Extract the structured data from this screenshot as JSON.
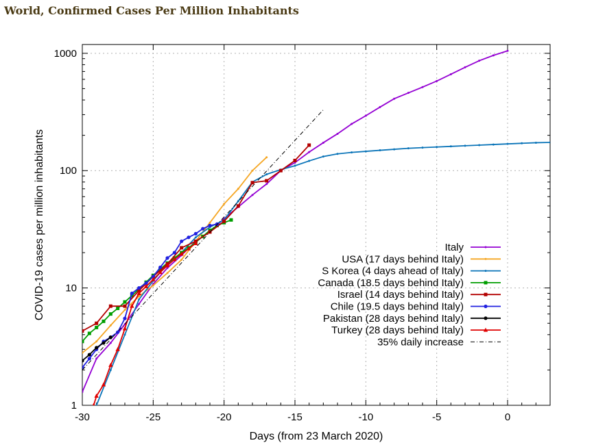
{
  "page": {
    "title": "World, Confirmed Cases Per Million Inhabitants"
  },
  "chart_data": {
    "type": "line",
    "title": "World, Confirmed Cases Per Million Inhabitants",
    "xlabel": "Days (from 23 March 2020)",
    "ylabel": "COVID-19 cases per million inhabitants",
    "xlim": [
      -30,
      3
    ],
    "ylim": [
      1,
      1000
    ],
    "yscale": "log",
    "grid": true,
    "legend_position": "lower-right",
    "x_ticks": [
      -30,
      -25,
      -20,
      -15,
      -10,
      -5,
      0
    ],
    "y_ticks": [
      1,
      10,
      100,
      1000
    ],
    "series": [
      {
        "name": "Italy",
        "color": "#9400d3",
        "marker": "tick",
        "x": [
          -30,
          -29,
          -28,
          -27,
          -26,
          -25,
          -24,
          -23,
          -22,
          -21,
          -20,
          -19,
          -18,
          -17,
          -16,
          -15,
          -14,
          -13,
          -12,
          -11,
          -10,
          -9,
          -8,
          -7,
          -6,
          -5,
          -4,
          -3,
          -2,
          -1,
          0
        ],
        "y": [
          1.3,
          2.5,
          3.4,
          4.9,
          7.3,
          10.8,
          14.8,
          19,
          25,
          30,
          39,
          49,
          62,
          77,
          100,
          117,
          144,
          173,
          206,
          250,
          294,
          348,
          410,
          460,
          515,
          580,
          663,
          760,
          865,
          960,
          1050
        ]
      },
      {
        "name": "USA (17 days behind Italy)",
        "color": "#f5a623",
        "marker": "tick",
        "x": [
          -30,
          -29,
          -28,
          -27,
          -26,
          -25,
          -24,
          -23,
          -22,
          -21,
          -20,
          -19,
          -18,
          -17
        ],
        "y": [
          2.8,
          3.5,
          4.8,
          6.5,
          8.5,
          10.5,
          13.4,
          17.4,
          25,
          36,
          52,
          70,
          100,
          130
        ]
      },
      {
        "name": "S Korea (4 days ahead of Italy)",
        "color": "#0a74b8",
        "marker": "tick",
        "x": [
          -29,
          -28,
          -27,
          -26,
          -25,
          -24,
          -23,
          -22,
          -21,
          -20,
          -19,
          -18,
          -17,
          -16,
          -15,
          -14,
          -13,
          -12,
          -11,
          -10,
          -9,
          -8,
          -7,
          -6,
          -5,
          -4,
          -3,
          -2,
          -1,
          0,
          1,
          2,
          3
        ],
        "y": [
          1,
          2,
          4,
          8,
          11.5,
          16,
          20,
          27,
          33,
          38,
          55,
          80,
          93,
          102,
          110,
          121,
          132,
          139,
          143,
          146,
          149,
          152,
          155,
          157,
          159,
          161,
          163,
          165,
          167,
          169,
          171,
          173,
          174
        ]
      },
      {
        "name": "Canada (18.5 days behind Italy)",
        "color": "#009e00",
        "marker": "square",
        "x": [
          -30,
          -29.5,
          -29,
          -28.5,
          -28,
          -27.5,
          -27,
          -26.5,
          -26,
          -25.5,
          -25,
          -24.5,
          -24,
          -23.5,
          -23,
          -22.5,
          -22,
          -21.5,
          -21,
          -20.5,
          -20,
          -19.5
        ],
        "y": [
          3.5,
          4.1,
          4.6,
          5.2,
          6,
          6.7,
          7.6,
          8.6,
          9.8,
          11.2,
          12.8,
          14.5,
          16.3,
          18,
          20,
          22,
          24.5,
          27.5,
          31,
          34,
          36,
          38
        ]
      },
      {
        "name": "Israel (14 days behind Italy)",
        "color": "#b30000",
        "marker": "square",
        "x": [
          -30,
          -29,
          -28,
          -27,
          -26,
          -25,
          -24,
          -23,
          -22,
          -21,
          -20,
          -19,
          -18,
          -17,
          -16,
          -15,
          -14
        ],
        "y": [
          4.3,
          5,
          7,
          7,
          9.5,
          12.5,
          16,
          22,
          25,
          30,
          37,
          50,
          79,
          82,
          100,
          122,
          165
        ]
      },
      {
        "name": "Chile (19.5 days behind Italy)",
        "color": "#2020e0",
        "marker": "circle",
        "x": [
          -30,
          -29.5,
          -29,
          -28.5,
          -28,
          -27.5,
          -27,
          -26.5,
          -26,
          -25.5,
          -25,
          -24.5,
          -24,
          -23.5,
          -23,
          -22.5,
          -22,
          -21.5,
          -21,
          -20.5
        ],
        "y": [
          2.1,
          2.5,
          3,
          3.5,
          3.8,
          4.2,
          5.5,
          9,
          10,
          11,
          12.5,
          15,
          18,
          20,
          25,
          27,
          29,
          32,
          34,
          35
        ]
      },
      {
        "name": "Pakistan (28 days behind Italy)",
        "color": "#000000",
        "marker": "circle",
        "x": [
          -30,
          -29.5,
          -29,
          -28.5,
          -28
        ],
        "y": [
          2.4,
          2.7,
          3.1,
          3.4,
          3.8
        ]
      },
      {
        "name": "Turkey (28 days behind Italy)",
        "color": "#e00000",
        "marker": "triangle",
        "x": [
          -29.2,
          -29,
          -28.5,
          -28,
          -27.5,
          -27,
          -26.5,
          -26,
          -25.5,
          -25,
          -24.5,
          -24,
          -23.5,
          -23,
          -22.5,
          -22
        ],
        "y": [
          1,
          1.2,
          1.5,
          2.2,
          3,
          4.5,
          7,
          9,
          10.3,
          11.8,
          13.6,
          15.5,
          17.5,
          19.5,
          21.6,
          24
        ]
      },
      {
        "name": "35% daily increase",
        "color": "#000000",
        "marker": "none",
        "dash": "dashdot",
        "x": [
          -30,
          -13
        ],
        "y": [
          2.0,
          330
        ]
      }
    ]
  }
}
